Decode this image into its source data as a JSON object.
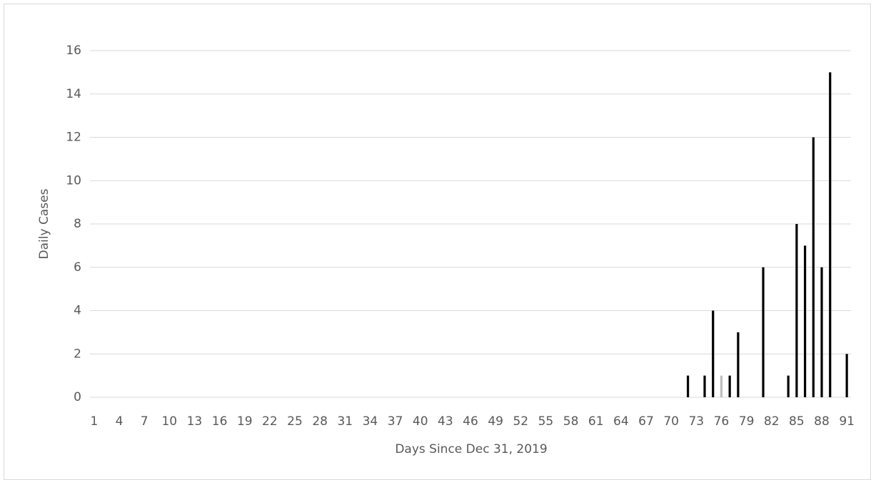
{
  "chart_data": {
    "type": "bar",
    "x_label": "Days Since Dec 31, 2019",
    "y_label": "Daily Cases",
    "categories": [
      "1",
      null,
      null,
      "4",
      null,
      null,
      "7",
      null,
      null,
      "10",
      null,
      null,
      "13",
      null,
      null,
      "16",
      null,
      null,
      "19",
      null,
      null,
      "22",
      null,
      null,
      "25",
      null,
      null,
      "28",
      null,
      null,
      "31",
      null,
      null,
      "34",
      null,
      null,
      "37",
      null,
      null,
      "40",
      null,
      null,
      "43",
      null,
      null,
      "46",
      null,
      null,
      "49",
      null,
      null,
      "52",
      null,
      null,
      "55",
      null,
      null,
      "58",
      null,
      null,
      "61",
      null,
      null,
      "64",
      null,
      null,
      "67",
      null,
      null,
      "70",
      null,
      null,
      "73",
      null,
      null,
      "76",
      null,
      null,
      "79",
      null,
      null,
      "82",
      null,
      null,
      "85",
      null,
      null,
      "88",
      null,
      null,
      "91"
    ],
    "values": [
      0,
      0,
      0,
      0,
      0,
      0,
      0,
      0,
      0,
      0,
      0,
      0,
      0,
      0,
      0,
      0,
      0,
      0,
      0,
      0,
      0,
      0,
      0,
      0,
      0,
      0,
      0,
      0,
      0,
      0,
      0,
      0,
      0,
      0,
      0,
      0,
      0,
      0,
      0,
      0,
      0,
      0,
      0,
      0,
      0,
      0,
      0,
      0,
      0,
      0,
      0,
      0,
      0,
      0,
      0,
      0,
      0,
      0,
      0,
      0,
      0,
      0,
      0,
      0,
      0,
      0,
      0,
      0,
      0,
      0,
      0,
      1,
      0,
      1,
      4,
      1,
      1,
      3,
      0,
      0,
      6,
      0,
      0,
      1,
      8,
      7,
      12,
      6,
      15,
      0,
      2
    ],
    "colors": [
      "#000000",
      "#000000",
      "#000000",
      "#000000",
      "#000000",
      "#000000",
      "#000000",
      "#000000",
      "#000000",
      "#000000",
      "#000000",
      "#000000",
      "#000000",
      "#000000",
      "#000000",
      "#000000",
      "#000000",
      "#000000",
      "#000000",
      "#000000",
      "#000000",
      "#000000",
      "#000000",
      "#000000",
      "#000000",
      "#000000",
      "#000000",
      "#000000",
      "#000000",
      "#000000",
      "#000000",
      "#000000",
      "#000000",
      "#000000",
      "#000000",
      "#000000",
      "#000000",
      "#000000",
      "#000000",
      "#000000",
      "#000000",
      "#000000",
      "#000000",
      "#000000",
      "#000000",
      "#000000",
      "#000000",
      "#000000",
      "#000000",
      "#000000",
      "#000000",
      "#000000",
      "#000000",
      "#000000",
      "#000000",
      "#000000",
      "#000000",
      "#000000",
      "#000000",
      "#000000",
      "#000000",
      "#000000",
      "#000000",
      "#000000",
      "#000000",
      "#000000",
      "#000000",
      "#000000",
      "#000000",
      "#000000",
      "#000000",
      "#000000",
      "#000000",
      "#000000",
      "#000000",
      "#bfbfbf",
      "#000000",
      "#000000",
      "#000000",
      "#000000",
      "#000000",
      "#000000",
      "#000000",
      "#000000",
      "#000000",
      "#000000",
      "#000000",
      "#000000",
      "#000000",
      "#000000",
      "#000000"
    ],
    "ylim": [
      0,
      16
    ],
    "yticks": [
      0,
      2,
      4,
      6,
      8,
      10,
      12,
      14,
      16
    ],
    "grid": true
  }
}
